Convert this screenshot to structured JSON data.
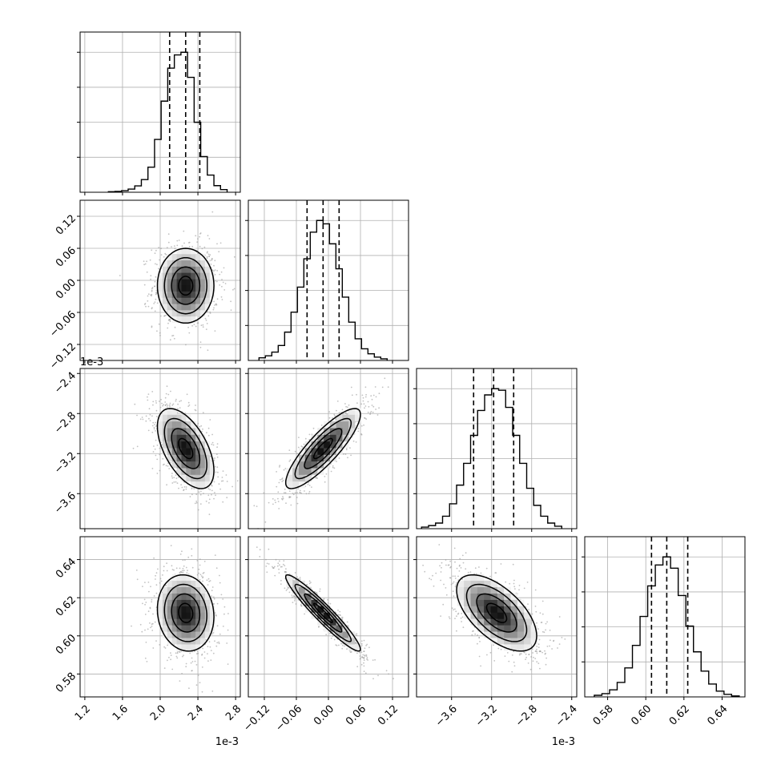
{
  "chart_data": {
    "type": "corner",
    "colors": {
      "line": "#000000",
      "grid": "#b0b0b0",
      "scatter": "#9a9a9a",
      "density_dark": "#000000",
      "density_light": "#ffffff"
    },
    "grid": true,
    "parameters": [
      {
        "id": "p0",
        "range": [
          1.15,
          2.85
        ],
        "ticks": [
          1.2,
          1.6,
          2.0,
          2.4,
          2.8
        ],
        "tick_labels": [
          "1.2",
          "1.6",
          "2.0",
          "2.4",
          "2.8"
        ],
        "offset_label": "1e-3",
        "quantiles": [
          2.1,
          2.27,
          2.42
        ],
        "mean": 2.27,
        "sd": 0.15
      },
      {
        "id": "p1",
        "range": [
          -0.15,
          0.15
        ],
        "ticks": [
          -0.12,
          -0.06,
          0.0,
          0.06,
          0.12
        ],
        "tick_labels": [
          "−0.12",
          "−0.06",
          "0.00",
          "0.06",
          "0.12"
        ],
        "offset_label": "",
        "quantiles": [
          -0.04,
          -0.01,
          0.02
        ],
        "mean": -0.01,
        "sd": 0.035
      },
      {
        "id": "p2",
        "range": [
          -3.95,
          -2.35
        ],
        "ticks": [
          -3.6,
          -3.2,
          -2.8,
          -2.4
        ],
        "tick_labels": [
          "−3.6",
          "−3.2",
          "−2.8",
          "−2.4"
        ],
        "offset_label": "1e-3",
        "quantiles": [
          -3.38,
          -3.18,
          -2.98
        ],
        "mean": -3.15,
        "sd": 0.2
      },
      {
        "id": "p3",
        "range": [
          0.568,
          0.652
        ],
        "ticks": [
          0.58,
          0.6,
          0.62,
          0.64
        ],
        "tick_labels": [
          "0.58",
          "0.60",
          "0.62",
          "0.64"
        ],
        "offset_label": "",
        "quantiles": [
          0.603,
          0.611,
          0.622
        ],
        "mean": 0.612,
        "sd": 0.01
      }
    ],
    "histograms": [
      {
        "param": "p0",
        "bin_edges": [
          1.45,
          1.52,
          1.59,
          1.66,
          1.73,
          1.8,
          1.87,
          1.94,
          2.01,
          2.08,
          2.15,
          2.22,
          2.29,
          2.36,
          2.43,
          2.5,
          2.57,
          2.64,
          2.71
        ],
        "counts": [
          2,
          3,
          6,
          12,
          24,
          48,
          95,
          200,
          345,
          470,
          520,
          530,
          435,
          265,
          135,
          65,
          25,
          10
        ]
      },
      {
        "param": "p1",
        "bin_edges": [
          -0.13,
          -0.118,
          -0.106,
          -0.094,
          -0.082,
          -0.07,
          -0.058,
          -0.046,
          -0.034,
          -0.022,
          -0.01,
          0.002,
          0.014,
          0.026,
          0.038,
          0.05,
          0.062,
          0.074,
          0.086,
          0.098,
          0.11
        ],
        "counts": [
          8,
          14,
          25,
          45,
          85,
          145,
          220,
          305,
          385,
          420,
          410,
          350,
          275,
          190,
          115,
          65,
          35,
          20,
          10,
          5
        ]
      },
      {
        "param": "p2",
        "bin_edges": [
          -3.9,
          -3.83,
          -3.76,
          -3.69,
          -3.62,
          -3.55,
          -3.48,
          -3.41,
          -3.34,
          -3.27,
          -3.2,
          -3.13,
          -3.06,
          -2.99,
          -2.92,
          -2.85,
          -2.78,
          -2.71,
          -2.64,
          -2.57,
          -2.5
        ],
        "counts": [
          5,
          10,
          18,
          40,
          80,
          140,
          210,
          300,
          380,
          430,
          450,
          445,
          390,
          300,
          210,
          130,
          75,
          40,
          18,
          8
        ]
      },
      {
        "param": "p3",
        "bin_edges": [
          0.573,
          0.577,
          0.581,
          0.585,
          0.589,
          0.593,
          0.597,
          0.601,
          0.605,
          0.609,
          0.613,
          0.617,
          0.621,
          0.625,
          0.629,
          0.633,
          0.637,
          0.641,
          0.645,
          0.649
        ],
        "counts": [
          5,
          10,
          22,
          45,
          90,
          160,
          250,
          345,
          410,
          435,
          400,
          315,
          220,
          140,
          80,
          40,
          18,
          8,
          3
        ]
      }
    ],
    "pairs": [
      {
        "x": "p0",
        "y": "p1",
        "correlation": 0.0
      },
      {
        "x": "p0",
        "y": "p2",
        "correlation": -0.55
      },
      {
        "x": "p1",
        "y": "p2",
        "correlation": 0.85
      },
      {
        "x": "p0",
        "y": "p3",
        "correlation": -0.1
      },
      {
        "x": "p1",
        "y": "p3",
        "correlation": -0.95
      },
      {
        "x": "p2",
        "y": "p3",
        "correlation": -0.6
      }
    ]
  }
}
